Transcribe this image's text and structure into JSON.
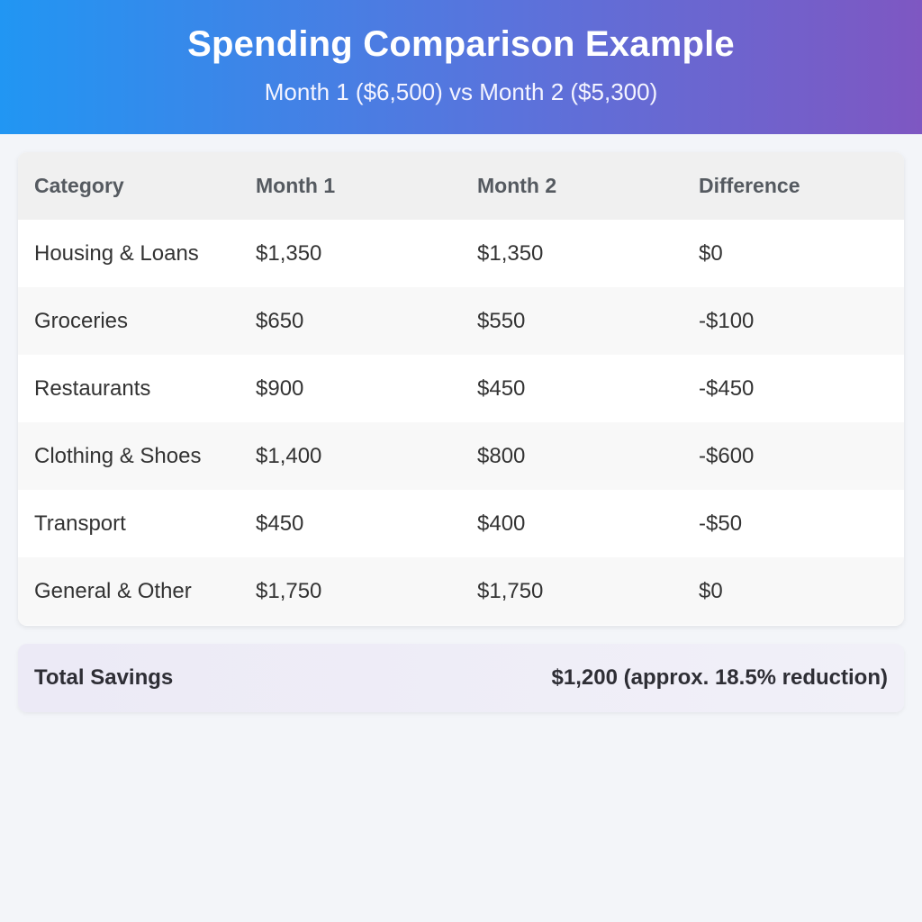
{
  "header": {
    "title": "Spending Comparison Example",
    "subtitle": "Month 1 ($6,500) vs Month 2 ($5,300)"
  },
  "table": {
    "columns": [
      "Category",
      "Month 1",
      "Month 2",
      "Difference"
    ],
    "rows": [
      [
        "Housing & Loans",
        "$1,350",
        "$1,350",
        "$0"
      ],
      [
        "Groceries",
        "$650",
        "$550",
        "-$100"
      ],
      [
        "Restaurants",
        "$900",
        "$450",
        "-$450"
      ],
      [
        "Clothing & Shoes",
        "$1,400",
        "$800",
        "-$600"
      ],
      [
        "Transport",
        "$450",
        "$400",
        "-$50"
      ],
      [
        "General & Other",
        "$1,750",
        "$1,750",
        "$0"
      ]
    ]
  },
  "summary": {
    "label": "Total Savings",
    "value": "$1,200 (approx. 18.5% reduction)"
  },
  "colors": {
    "header_gradient_start": "#2196f3",
    "header_gradient_end": "#7e57c2",
    "page_background": "#f3f5f9"
  }
}
